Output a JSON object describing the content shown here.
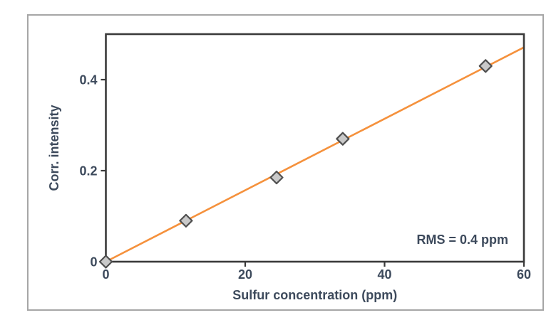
{
  "figure": {
    "background": "#ffffff",
    "frame_color": "#a6a6a6"
  },
  "chart_data": {
    "type": "scatter",
    "title": "",
    "xlabel": "Sulfur concentration (ppm)",
    "ylabel": "Corr. intensity",
    "xlim": [
      0,
      60
    ],
    "ylim": [
      0,
      0.5
    ],
    "x_ticks": [
      0,
      20,
      40,
      60
    ],
    "x_tick_labels": [
      "0",
      "20",
      "40",
      "60"
    ],
    "y_ticks": [
      0,
      0.2,
      0.4
    ],
    "y_tick_labels": [
      "0",
      "0.2",
      "0.4"
    ],
    "series": [
      {
        "name": "calibration-points",
        "marker": "diamond",
        "x": [
          0,
          11.5,
          24.5,
          34,
          54.5
        ],
        "y": [
          0,
          0.09,
          0.185,
          0.27,
          0.43
        ]
      }
    ],
    "fit_line": {
      "x": [
        0,
        60
      ],
      "y": [
        0,
        0.471
      ]
    },
    "annotation": "RMS = 0.4 ppm",
    "grid": false,
    "legend_position": "none",
    "colors": {
      "line": "#f5913c",
      "marker_fill": "#c9c9c9",
      "marker_stroke": "#4f4f4f",
      "axis": "#3a3a3a",
      "text": "#3d4a5c"
    }
  }
}
